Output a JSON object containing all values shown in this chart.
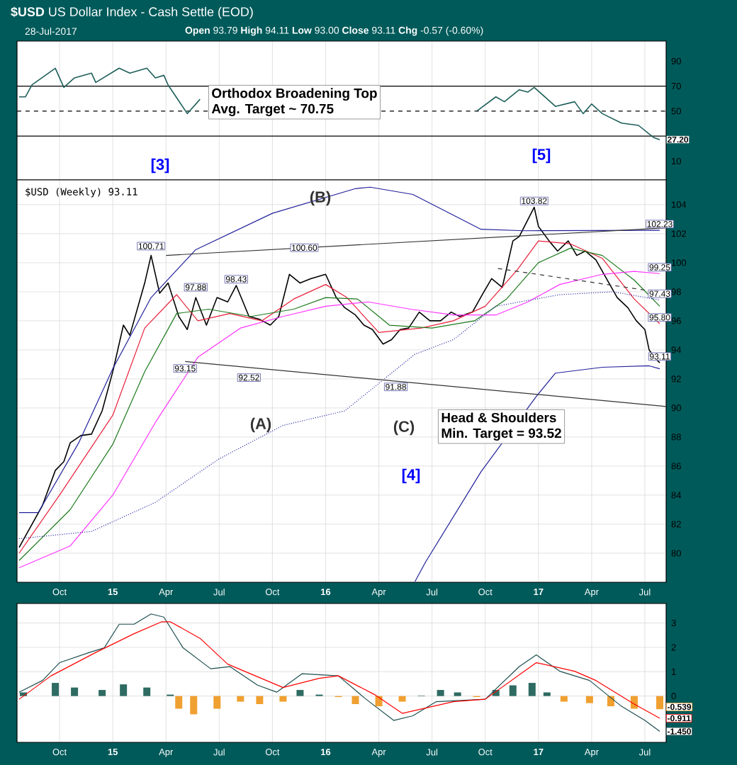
{
  "chart_data": [
    {
      "type": "line",
      "title": "**$USD** US Dollar Index - Cash Settle (EOD)",
      "subtitle": "28-Jul-2017",
      "annotations": [
        "**Open** 93.79  **High** 94.11  **Low** 93.00  **Close** 93.11  **Chg** -0.57 (-0.60%)",
        {
          "text": "27.20",
          "x": 2017.57,
          "y": 27.2
        }
      ],
      "xlim": [
        2014.55,
        2017.6
      ],
      "ylim": [
        -5,
        106
      ],
      "yticks": [
        10,
        50,
        70,
        90
      ],
      "xticks": [
        {
          "value": 2014.75,
          "label": null
        },
        {
          "value": 2015.0,
          "label": null
        },
        {
          "value": 2015.25,
          "label": null
        },
        {
          "value": 2015.5,
          "label": null
        },
        {
          "value": 2015.75,
          "label": null
        },
        {
          "value": 2016.0,
          "label": null
        },
        {
          "value": 2016.25,
          "label": null
        },
        {
          "value": 2016.5,
          "label": null
        },
        {
          "value": 2016.75,
          "label": null
        },
        {
          "value": 2017.0,
          "label": null
        },
        {
          "value": 2017.25,
          "label": null
        },
        {
          "value": 2017.5,
          "label": null
        }
      ],
      "tick_labels": "y",
      "grid": "x",
      "ref_lines": [
        {
          "axis": "y",
          "value": 70,
          "color": "#000000",
          "line_style": "solid"
        },
        {
          "axis": "y",
          "value": 50,
          "color": "#000000",
          "line_style": "dashed"
        },
        {
          "axis": "y",
          "value": 30,
          "color": "#000000",
          "line_style": "solid"
        }
      ],
      "series": [
        {
          "color": "#1e5f5a",
          "x": [
            2014.56,
            2014.59,
            2014.62,
            2014.73,
            2014.77,
            2014.82,
            2014.9,
            2014.92,
            2015.03,
            2015.08,
            2015.16,
            2015.2,
            2015.24,
            2015.26,
            2015.35,
            2015.41,
            2016.0,
            2016.71,
            2016.8,
            2016.84,
            2016.91,
            2016.95,
            2016.98,
            2017.08,
            2017.17,
            2017.21,
            2017.25,
            2017.3,
            2017.39,
            2017.47,
            2017.54,
            2017.57
          ],
          "values": [
            61.4,
            61.4,
            70.9,
            84.3,
            69,
            76.6,
            80.4,
            72.9,
            84.3,
            80.4,
            84.3,
            76.6,
            78.6,
            70.9,
            48,
            59.5,
            null,
            50,
            61.4,
            57.5,
            67.1,
            65.2,
            69,
            53.8,
            57.5,
            48,
            55.7,
            48,
            40.4,
            38.6,
            29,
            27.2
          ]
        }
      ]
    },
    {
      "type": "line",
      "annotations": [
        "$USD (Weekly) 93.11",
        "Orthodox Broadening Top",
        "Avg. Target ~ 70.75",
        "Head & Shoulders",
        "Min. Target = 93.52",
        "[3]",
        "[5]",
        {
          "text": "100.71",
          "x": 2015.18,
          "y": 100.71
        },
        {
          "text": "97.88",
          "x": 2015.39,
          "y": 97.88
        },
        {
          "text": "98.43",
          "x": 2015.58,
          "y": 98.43
        },
        {
          "text": "100.60",
          "x": 2015.9,
          "y": 100.6
        },
        {
          "text": "103.82",
          "x": 2016.98,
          "y": 103.82
        },
        {
          "text": "93.15",
          "x": 2015.34,
          "y": 93.15
        },
        {
          "text": "92.52",
          "x": 2015.64,
          "y": 92.52
        },
        {
          "text": "91.88",
          "x": 2016.33,
          "y": 91.88
        },
        "(A)",
        "(B)",
        "(C)",
        "[4]",
        {
          "text": "102.23",
          "x": 2017.57,
          "y": 102.23
        },
        {
          "text": "99.25",
          "x": 2017.57,
          "y": 99.25
        },
        {
          "text": "97.43",
          "x": 2017.57,
          "y": 97.43
        },
        {
          "text": "95.80",
          "x": 2017.57,
          "y": 95.8
        },
        {
          "text": "93.11",
          "x": 2017.57,
          "y": 93.11
        }
      ],
      "xlim": [
        2014.55,
        2017.6
      ],
      "ylim": [
        78,
        105.7
      ],
      "yticks": [
        80,
        82,
        84,
        86,
        88,
        90,
        92,
        94,
        96,
        98,
        100,
        102,
        104
      ],
      "xticks": [
        {
          "value": 2014.75,
          "label": "Oct"
        },
        {
          "value": 2015.0,
          "label": "15"
        },
        {
          "value": 2015.25,
          "label": "Apr"
        },
        {
          "value": 2015.5,
          "label": "Jul"
        },
        {
          "value": 2015.75,
          "label": "Oct"
        },
        {
          "value": 2016.0,
          "label": "16"
        },
        {
          "value": 2016.25,
          "label": "Apr"
        },
        {
          "value": 2016.5,
          "label": "Jul"
        },
        {
          "value": 2016.75,
          "label": "Oct"
        },
        {
          "value": 2017.0,
          "label": "17"
        },
        {
          "value": 2017.25,
          "label": "Apr"
        },
        {
          "value": 2017.5,
          "label": "Jul"
        }
      ],
      "grid": true,
      "series": [
        {
          "color": "#000000",
          "x": [
            2014.56,
            2014.67,
            2014.73,
            2014.77,
            2014.8,
            2014.85,
            2014.9,
            2014.95,
            2015.0,
            2015.05,
            2015.08,
            2015.15,
            2015.18,
            2015.22,
            2015.26,
            2015.31,
            2015.35,
            2015.39,
            2015.44,
            2015.49,
            2015.54,
            2015.58,
            2015.64,
            2015.69,
            2015.74,
            2015.78,
            2015.83,
            2015.88,
            2015.93,
            2016.0,
            2016.05,
            2016.09,
            2016.14,
            2016.18,
            2016.22,
            2016.27,
            2016.31,
            2016.35,
            2016.39,
            2016.44,
            2016.49,
            2016.54,
            2016.59,
            2016.63,
            2016.69,
            2016.74,
            2016.78,
            2016.83,
            2016.88,
            2016.91,
            2016.98,
            2017.0,
            2017.05,
            2017.09,
            2017.14,
            2017.18,
            2017.22,
            2017.27,
            2017.32,
            2017.37,
            2017.42,
            2017.46,
            2017.5,
            2017.52,
            2017.55,
            2017.57
          ],
          "values": [
            80.4,
            83.3,
            85.7,
            86.3,
            87.6,
            88.1,
            88.2,
            89.8,
            92.5,
            95.7,
            95.0,
            98.6,
            100.5,
            97.9,
            98.6,
            96.3,
            95.4,
            97.6,
            95.7,
            97.6,
            97.3,
            98.43,
            96.3,
            96.1,
            95.7,
            96.3,
            99.2,
            98.6,
            98.9,
            99.2,
            97.6,
            96.9,
            96.4,
            95.7,
            95.4,
            94.4,
            94.7,
            95.4,
            95.5,
            96.6,
            96.0,
            96.0,
            96.6,
            96.3,
            96.6,
            97.9,
            98.9,
            98.3,
            101.5,
            101.8,
            103.82,
            102.5,
            101.5,
            100.8,
            101.5,
            100.5,
            100.8,
            100.2,
            98.9,
            97.6,
            96.9,
            96.0,
            95.4,
            94.0,
            93.4,
            93.11
          ]
        },
        {
          "color": "#e8203a",
          "x": [
            2014.56,
            2014.75,
            2015.0,
            2015.15,
            2015.3,
            2015.4,
            2015.55,
            2015.7,
            2015.85,
            2016.0,
            2016.1,
            2016.25,
            2016.45,
            2016.6,
            2016.75,
            2016.9,
            2017.0,
            2017.15,
            2017.3,
            2017.45,
            2017.57
          ],
          "values": [
            80.0,
            84.0,
            89.5,
            95.5,
            97.8,
            96.0,
            96.5,
            96.0,
            97.5,
            98.5,
            97.6,
            95.2,
            95.5,
            96.0,
            97.0,
            99.5,
            101.5,
            101.3,
            100.3,
            97.5,
            95.8
          ]
        },
        {
          "color": "#1c7a1c",
          "x": [
            2014.56,
            2014.8,
            2015.0,
            2015.15,
            2015.3,
            2015.45,
            2015.65,
            2015.85,
            2016.0,
            2016.15,
            2016.3,
            2016.5,
            2016.7,
            2016.85,
            2017.0,
            2017.15,
            2017.3,
            2017.45,
            2017.57
          ],
          "values": [
            79.5,
            83.0,
            87.5,
            92.5,
            96.5,
            96.8,
            96.3,
            96.8,
            97.6,
            97.5,
            95.7,
            95.5,
            96.0,
            97.5,
            100.0,
            101.0,
            100.5,
            98.8,
            97.0
          ]
        },
        {
          "color": "#ff33ff",
          "x": [
            2014.56,
            2014.8,
            2015.0,
            2015.2,
            2015.4,
            2015.6,
            2015.8,
            2016.0,
            2016.2,
            2016.4,
            2016.6,
            2016.8,
            2016.95,
            2017.1,
            2017.3,
            2017.45,
            2017.57
          ],
          "values": [
            79.0,
            80.5,
            84.0,
            89.0,
            93.5,
            95.5,
            96.3,
            97.0,
            97.3,
            96.8,
            96.4,
            96.4,
            97.3,
            98.5,
            99.2,
            99.4,
            99.25
          ]
        },
        {
          "color": "#3333aa",
          "line_style": "dotted",
          "x": [
            2014.56,
            2014.9,
            2015.2,
            2015.5,
            2015.8,
            2016.09,
            2016.42,
            2016.6,
            2016.8,
            2017.1,
            2017.35,
            2017.57
          ],
          "values": [
            81.0,
            81.5,
            83.5,
            86.5,
            88.8,
            89.8,
            93.7,
            94.7,
            97.0,
            97.8,
            98.0,
            97.43
          ]
        },
        {
          "color": "#22229a",
          "x": [
            2014.56,
            2014.65,
            2014.84,
            2015.0,
            2015.18,
            2015.39,
            2015.75,
            2016.14,
            2016.21,
            2016.41,
            2016.73,
            2016.93,
            2017.57
          ],
          "values": [
            82.8,
            82.8,
            87.6,
            92.7,
            97.6,
            100.9,
            103.4,
            105.1,
            105.2,
            104.7,
            102.3,
            102.2,
            102.23
          ]
        },
        {
          "color": "#22229a",
          "x": [
            2016.42,
            2016.47,
            2016.73,
            2016.99,
            2017.08,
            2017.3,
            2017.52,
            2017.57
          ],
          "values": [
            78.05,
            79.4,
            85.6,
            90.8,
            92.4,
            92.8,
            92.9,
            92.7
          ]
        },
        {
          "color": "#333333",
          "x": [
            2015.25,
            2017.6
          ],
          "values": [
            100.5,
            102.4
          ]
        },
        {
          "color": "#333333",
          "x": [
            2015.34,
            2017.6
          ],
          "values": [
            93.2,
            90.1
          ]
        },
        {
          "color": "#333333",
          "line_style": "dashed",
          "x": [
            2016.81,
            2017.6
          ],
          "values": [
            99.6,
            97.9
          ]
        }
      ]
    },
    {
      "type": "line",
      "annotations": [
        {
          "text": "-0.539",
          "x": 2017.57,
          "y": -0.539
        },
        {
          "text": "-0.911",
          "x": 2017.57,
          "y": -0.911
        },
        {
          "text": "-1.450",
          "x": 2017.57,
          "y": -1.45
        }
      ],
      "xlim": [
        2014.55,
        2017.6
      ],
      "ylim": [
        -1.9,
        3.8
      ],
      "yticks": [
        0,
        1,
        2,
        3
      ],
      "xticks": [
        {
          "value": 2014.75,
          "label": "Oct"
        },
        {
          "value": 2015.0,
          "label": "15"
        },
        {
          "value": 2015.25,
          "label": "Apr"
        },
        {
          "value": 2015.5,
          "label": "Jul"
        },
        {
          "value": 2015.75,
          "label": "Oct"
        },
        {
          "value": 2016.0,
          "label": "16"
        },
        {
          "value": 2016.25,
          "label": "Apr"
        },
        {
          "value": 2016.5,
          "label": "Jul"
        },
        {
          "value": 2016.75,
          "label": "Oct"
        },
        {
          "value": 2017.0,
          "label": "17"
        },
        {
          "value": 2017.25,
          "label": "Apr"
        },
        {
          "value": 2017.5,
          "label": "Jul"
        }
      ],
      "grid": true,
      "series": [
        {
          "type": "bar",
          "x": [
            2014.58,
            2014.73,
            2014.82,
            2014.95,
            2015.05,
            2015.16,
            2015.27,
            2015.31,
            2015.38,
            2015.49,
            2015.6,
            2015.69,
            2015.8,
            2015.88,
            2015.97,
            2016.06,
            2016.14,
            2016.25,
            2016.36,
            2016.45,
            2016.54,
            2016.62,
            2016.71,
            2016.8,
            2016.88,
            2016.97,
            2017.04,
            2017.12,
            2017.24,
            2017.34,
            2017.45,
            2017.57
          ],
          "values": [
            0.15,
            0.54,
            0.35,
            0.25,
            0.48,
            0.35,
            0.06,
            -0.52,
            -0.75,
            -0.52,
            -0.23,
            -0.33,
            -0.23,
            0.25,
            0.06,
            -0.04,
            -0.33,
            -0.42,
            -0.23,
            0.02,
            0.25,
            0.15,
            -0.04,
            0.25,
            0.44,
            0.54,
            0.15,
            -0.23,
            -0.29,
            -0.42,
            -0.52,
            -0.539
          ],
          "colors": [
            "#2e6b62",
            "#2e6b62",
            "#2e6b62",
            "#2e6b62",
            "#2e6b62",
            "#2e6b62",
            "#2e6b62",
            "#f0a030",
            "#f0a030",
            "#f0a030",
            "#f0a030",
            "#f0a030",
            "#f0a030",
            "#2e6b62",
            "#2e6b62",
            "#f0a030",
            "#f0a030",
            "#f0a030",
            "#f0a030",
            "#2e6b62",
            "#2e6b62",
            "#2e6b62",
            "#f0a030",
            "#2e6b62",
            "#2e6b62",
            "#2e6b62",
            "#2e6b62",
            "#f0a030",
            "#f0a030",
            "#f0a030",
            "#f0a030",
            "#f0a030"
          ]
        },
        {
          "color": "#1f4f4f",
          "x": [
            2014.56,
            2014.67,
            2014.75,
            2014.89,
            2014.96,
            2015.03,
            2015.1,
            2015.18,
            2015.24,
            2015.33,
            2015.46,
            2015.55,
            2015.68,
            2015.77,
            2015.89,
            2016.06,
            2016.19,
            2016.32,
            2016.41,
            2016.52,
            2016.75,
            2016.91,
            2016.99,
            2017.1,
            2017.24,
            2017.39,
            2017.5,
            2017.57
          ],
          "values": [
            0.16,
            0.64,
            1.37,
            1.79,
            1.98,
            2.95,
            2.95,
            3.37,
            3.24,
            1.98,
            1.12,
            1.21,
            0.45,
            0.16,
            0.92,
            0.83,
            -0.13,
            -1.0,
            -0.81,
            -0.23,
            -0.13,
            1.21,
            1.69,
            1.02,
            0.64,
            -0.42,
            -1.0,
            -1.45
          ]
        },
        {
          "color": "#ff0000",
          "x": [
            2014.56,
            2014.71,
            2014.92,
            2015.1,
            2015.23,
            2015.27,
            2015.41,
            2015.54,
            2015.8,
            2015.97,
            2016.06,
            2016.23,
            2016.36,
            2016.6,
            2016.75,
            2016.99,
            2017.17,
            2017.27,
            2017.45,
            2017.57
          ],
          "values": [
            -0.13,
            0.83,
            1.79,
            2.56,
            3.05,
            3.05,
            2.37,
            1.31,
            0.35,
            0.73,
            0.83,
            0.06,
            -0.71,
            -0.23,
            -0.13,
            1.37,
            1.02,
            0.64,
            -0.33,
            -0.911
          ]
        }
      ]
    }
  ]
}
